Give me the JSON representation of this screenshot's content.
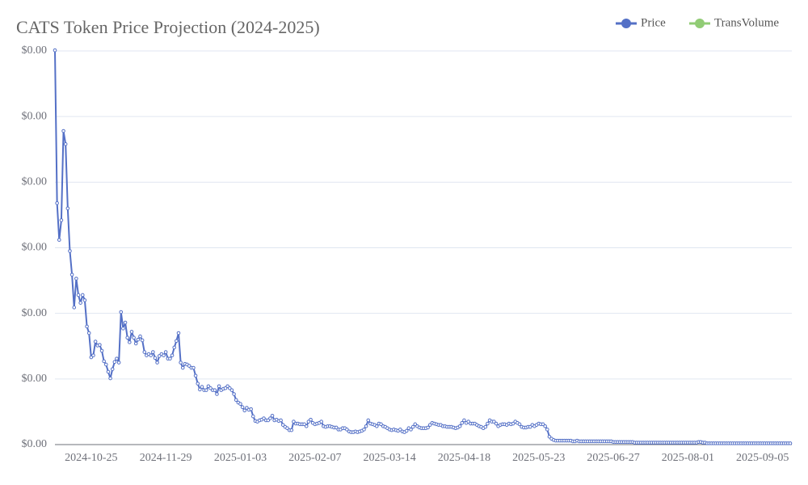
{
  "chart_data": {
    "type": "line",
    "title": "CATS Token Price Projection (2024-2025)",
    "categories": [
      null,
      null,
      null,
      null,
      null,
      null,
      null,
      null,
      null,
      null,
      null,
      null,
      null,
      null,
      null,
      null,
      null,
      "2024-10-25",
      null,
      null,
      null,
      null,
      null,
      null,
      null,
      null,
      null,
      null,
      null,
      null,
      null,
      null,
      null,
      null,
      null,
      null,
      null,
      null,
      null,
      null,
      null,
      null,
      null,
      null,
      null,
      null,
      null,
      null,
      null,
      null,
      null,
      null,
      "2024-11-29",
      null,
      null,
      null,
      null,
      null,
      null,
      null,
      null,
      null,
      null,
      null,
      null,
      null,
      null,
      null,
      null,
      null,
      null,
      null,
      null,
      null,
      null,
      null,
      null,
      null,
      null,
      null,
      null,
      null,
      null,
      null,
      null,
      null,
      null,
      "2025-01-03",
      null,
      null,
      null,
      null,
      null,
      null,
      null,
      null,
      null,
      null,
      null,
      null,
      null,
      null,
      null,
      null,
      null,
      null,
      null,
      null,
      null,
      null,
      null,
      null,
      null,
      null,
      null,
      null,
      null,
      null,
      null,
      null,
      null,
      null,
      "2025-02-07",
      null,
      null,
      null,
      null,
      null,
      null,
      null,
      null,
      null,
      null,
      null,
      null,
      null,
      null,
      null,
      null,
      null,
      null,
      null,
      null,
      null,
      null,
      null,
      null,
      null,
      null,
      null,
      null,
      null,
      null,
      null,
      null,
      null,
      null,
      "2025-03-14",
      null,
      null,
      null,
      null,
      null,
      null,
      null,
      null,
      null,
      null,
      null,
      null,
      null,
      null,
      null,
      null,
      null,
      null,
      null,
      null,
      null,
      null,
      null,
      null,
      null,
      null,
      null,
      null,
      null,
      null,
      null,
      null,
      null,
      null,
      "2025-04-18",
      null,
      null,
      null,
      null,
      null,
      null,
      null,
      null,
      null,
      null,
      null,
      null,
      null,
      null,
      null,
      null,
      null,
      null,
      null,
      null,
      null,
      null,
      null,
      null,
      null,
      null,
      null,
      null,
      null,
      null,
      null,
      null,
      null,
      null,
      "2025-05-23",
      null,
      null,
      null,
      null,
      null,
      null,
      null,
      null,
      null,
      null,
      null,
      null,
      null,
      null,
      null,
      null,
      null,
      null,
      null,
      null,
      null,
      null,
      null,
      null,
      null,
      null,
      null,
      null,
      null,
      null,
      null,
      null,
      null,
      null,
      "2025-06-27",
      null,
      null,
      null,
      null,
      null,
      null,
      null,
      null,
      null,
      null,
      null,
      null,
      null,
      null,
      null,
      null,
      null,
      null,
      null,
      null,
      null,
      null,
      null,
      null,
      null,
      null,
      null,
      null,
      null,
      null,
      null,
      null,
      null,
      null,
      "2025-08-01",
      null,
      null,
      null,
      null,
      null,
      null,
      null,
      null,
      null,
      null,
      null,
      null,
      null,
      null,
      null,
      null,
      null,
      null,
      null,
      null,
      null,
      null,
      null,
      null,
      null,
      null,
      null,
      null,
      null,
      null,
      null,
      null,
      null,
      null,
      "2025-09-05",
      null,
      null,
      null,
      null,
      null,
      null,
      null,
      null,
      null,
      null,
      null,
      null,
      null
    ],
    "series": [
      {
        "name": "Price",
        "color": "#5470c6",
        "values": [
          0.000601,
          0.000368,
          0.000312,
          0.000342,
          0.000478,
          0.000458,
          0.00036,
          0.000295,
          0.000259,
          0.000209,
          0.000253,
          0.000228,
          0.000216,
          0.000228,
          0.00022,
          0.00018,
          0.00017,
          0.000133,
          0.000136,
          0.000157,
          0.000151,
          0.000152,
          0.000143,
          0.000127,
          0.000122,
          0.000111,
          0.000101,
          0.000115,
          0.000126,
          0.000131,
          0.000125,
          0.000202,
          0.000177,
          0.000186,
          0.000163,
          0.000156,
          0.000172,
          0.000163,
          0.000154,
          0.00016,
          0.000165,
          0.000159,
          0.000141,
          0.000136,
          0.000138,
          0.000136,
          0.000141,
          0.000132,
          0.000125,
          0.000135,
          0.000138,
          0.000136,
          0.000141,
          0.000131,
          0.000131,
          0.000136,
          0.000148,
          0.000158,
          0.00017,
          0.000125,
          0.000117,
          0.000123,
          0.000122,
          0.00012,
          0.000117,
          0.000117,
          0.000105,
          9.3e-05,
          8.4e-05,
          8.8e-05,
          8.3e-05,
          8.3e-05,
          8.9e-05,
          8.6e-05,
          8.3e-05,
          8.3e-05,
          7.7e-05,
          8.9e-05,
          8.3e-05,
          8.5e-05,
          8.6e-05,
          8.9e-05,
          8.6e-05,
          8.3e-05,
          7.7e-05,
          6.8e-05,
          6.4e-05,
          6.2e-05,
          5.7e-05,
          5.2e-05,
          5.6e-05,
          5.3e-05,
          5.4e-05,
          4.3e-05,
          3.6e-05,
          3.5e-05,
          3.7e-05,
          3.8e-05,
          4e-05,
          3.7e-05,
          3.7e-05,
          4e-05,
          4.4e-05,
          3.7e-05,
          3.8e-05,
          3.6e-05,
          3.7e-05,
          3e-05,
          2.7e-05,
          2.5e-05,
          2.2e-05,
          2.2e-05,
          3.5e-05,
          3.2e-05,
          3.2e-05,
          3.1e-05,
          3.1e-05,
          3.1e-05,
          2.8e-05,
          3.5e-05,
          3.8e-05,
          3.3e-05,
          3.1e-05,
          3.2e-05,
          3.3e-05,
          3.5e-05,
          2.8e-05,
          2.7e-05,
          2.8e-05,
          2.8e-05,
          2.7e-05,
          2.6e-05,
          2.6e-05,
          2.3e-05,
          2.3e-05,
          2.5e-05,
          2.5e-05,
          2.3e-05,
          2e-05,
          1.9e-05,
          1.9e-05,
          2e-05,
          1.9e-05,
          2e-05,
          2.1e-05,
          2.3e-05,
          2.8e-05,
          3.7e-05,
          3.2e-05,
          3.1e-05,
          3e-05,
          2.8e-05,
          3.2e-05,
          3.1e-05,
          2.8e-05,
          2.7e-05,
          2.5e-05,
          2.3e-05,
          2.2e-05,
          2.3e-05,
          2.2e-05,
          2.1e-05,
          2.3e-05,
          2e-05,
          1.9e-05,
          2.1e-05,
          2.5e-05,
          2.3e-05,
          2.7e-05,
          3.1e-05,
          2.8e-05,
          2.6e-05,
          2.5e-05,
          2.5e-05,
          2.5e-05,
          2.6e-05,
          3e-05,
          3.3e-05,
          3.2e-05,
          3.1e-05,
          3e-05,
          3e-05,
          2.8e-05,
          2.8e-05,
          2.7e-05,
          2.7e-05,
          2.7e-05,
          2.6e-05,
          2.5e-05,
          2.6e-05,
          2.8e-05,
          3.3e-05,
          3.7e-05,
          3.3e-05,
          3.5e-05,
          3.2e-05,
          3.2e-05,
          3.2e-05,
          3e-05,
          2.8e-05,
          2.7e-05,
          2.5e-05,
          2.7e-05,
          3.2e-05,
          3.7e-05,
          3.5e-05,
          3.5e-05,
          3.2e-05,
          2.8e-05,
          3e-05,
          3.1e-05,
          3.1e-05,
          3e-05,
          3.2e-05,
          3.1e-05,
          3.2e-05,
          3.5e-05,
          3.3e-05,
          3.1e-05,
          2.7e-05,
          2.6e-05,
          2.6e-05,
          2.7e-05,
          2.7e-05,
          3e-05,
          2.8e-05,
          3e-05,
          3.2e-05,
          3.1e-05,
          3.1e-05,
          2.8e-05,
          2.3e-05,
          1.2e-05,
          9e-06,
          7e-06,
          6e-06,
          6e-06,
          6e-06,
          6e-06,
          6e-06,
          6e-06,
          6e-06,
          6e-06,
          5e-06,
          5e-06,
          6e-06,
          5e-06,
          5e-06,
          5e-06,
          5e-06,
          5e-06,
          5e-06,
          5e-06,
          5e-06,
          5e-06,
          5e-06,
          5e-06,
          5e-06,
          5e-06,
          5e-06,
          5e-06,
          5e-06,
          4e-06,
          4e-06,
          4e-06,
          4e-06,
          4e-06,
          4e-06,
          4e-06,
          4e-06,
          4e-06,
          4e-06,
          3e-06,
          3e-06,
          3e-06,
          3e-06,
          3e-06,
          3e-06,
          3e-06,
          3e-06,
          3e-06,
          3e-06,
          3e-06,
          3e-06,
          3e-06,
          3e-06,
          3e-06,
          3e-06,
          3e-06,
          3e-06,
          3e-06,
          3e-06,
          3e-06,
          3e-06,
          3e-06,
          3e-06,
          3e-06,
          3e-06,
          3e-06,
          3e-06,
          3e-06,
          3e-06,
          4e-06,
          4e-06,
          3e-06,
          3e-06,
          2e-06,
          2e-06,
          2e-06,
          2e-06,
          2e-06,
          2e-06,
          2e-06,
          2e-06,
          2e-06,
          2e-06,
          2e-06,
          2e-06,
          2e-06,
          2e-06,
          2e-06,
          2e-06,
          2e-06,
          2e-06,
          2e-06,
          2e-06,
          2e-06,
          2e-06,
          2e-06,
          2e-06,
          2e-06,
          2e-06,
          2e-06,
          2e-06,
          2e-06,
          2e-06,
          2e-06,
          2e-06,
          2e-06,
          2e-06,
          2e-06,
          2e-06,
          2e-06,
          2e-06,
          2e-06,
          2e-06
        ]
      },
      {
        "name": "TransVolume",
        "color": "#91cc75"
      }
    ],
    "ylim": [
      0,
      0.0006
    ],
    "yticks": [
      {
        "value": 0,
        "label": "$0.00"
      },
      {
        "value": 0.0001,
        "label": "$0.00"
      },
      {
        "value": 0.0002,
        "label": "$0.00"
      },
      {
        "value": 0.0003,
        "label": "$0.00"
      },
      {
        "value": 0.0004,
        "label": "$0.00"
      },
      {
        "value": 0.0005,
        "label": "$0.00"
      },
      {
        "value": 0.0006,
        "label": "$0.00"
      }
    ],
    "grid": true,
    "legend": "top-right"
  }
}
